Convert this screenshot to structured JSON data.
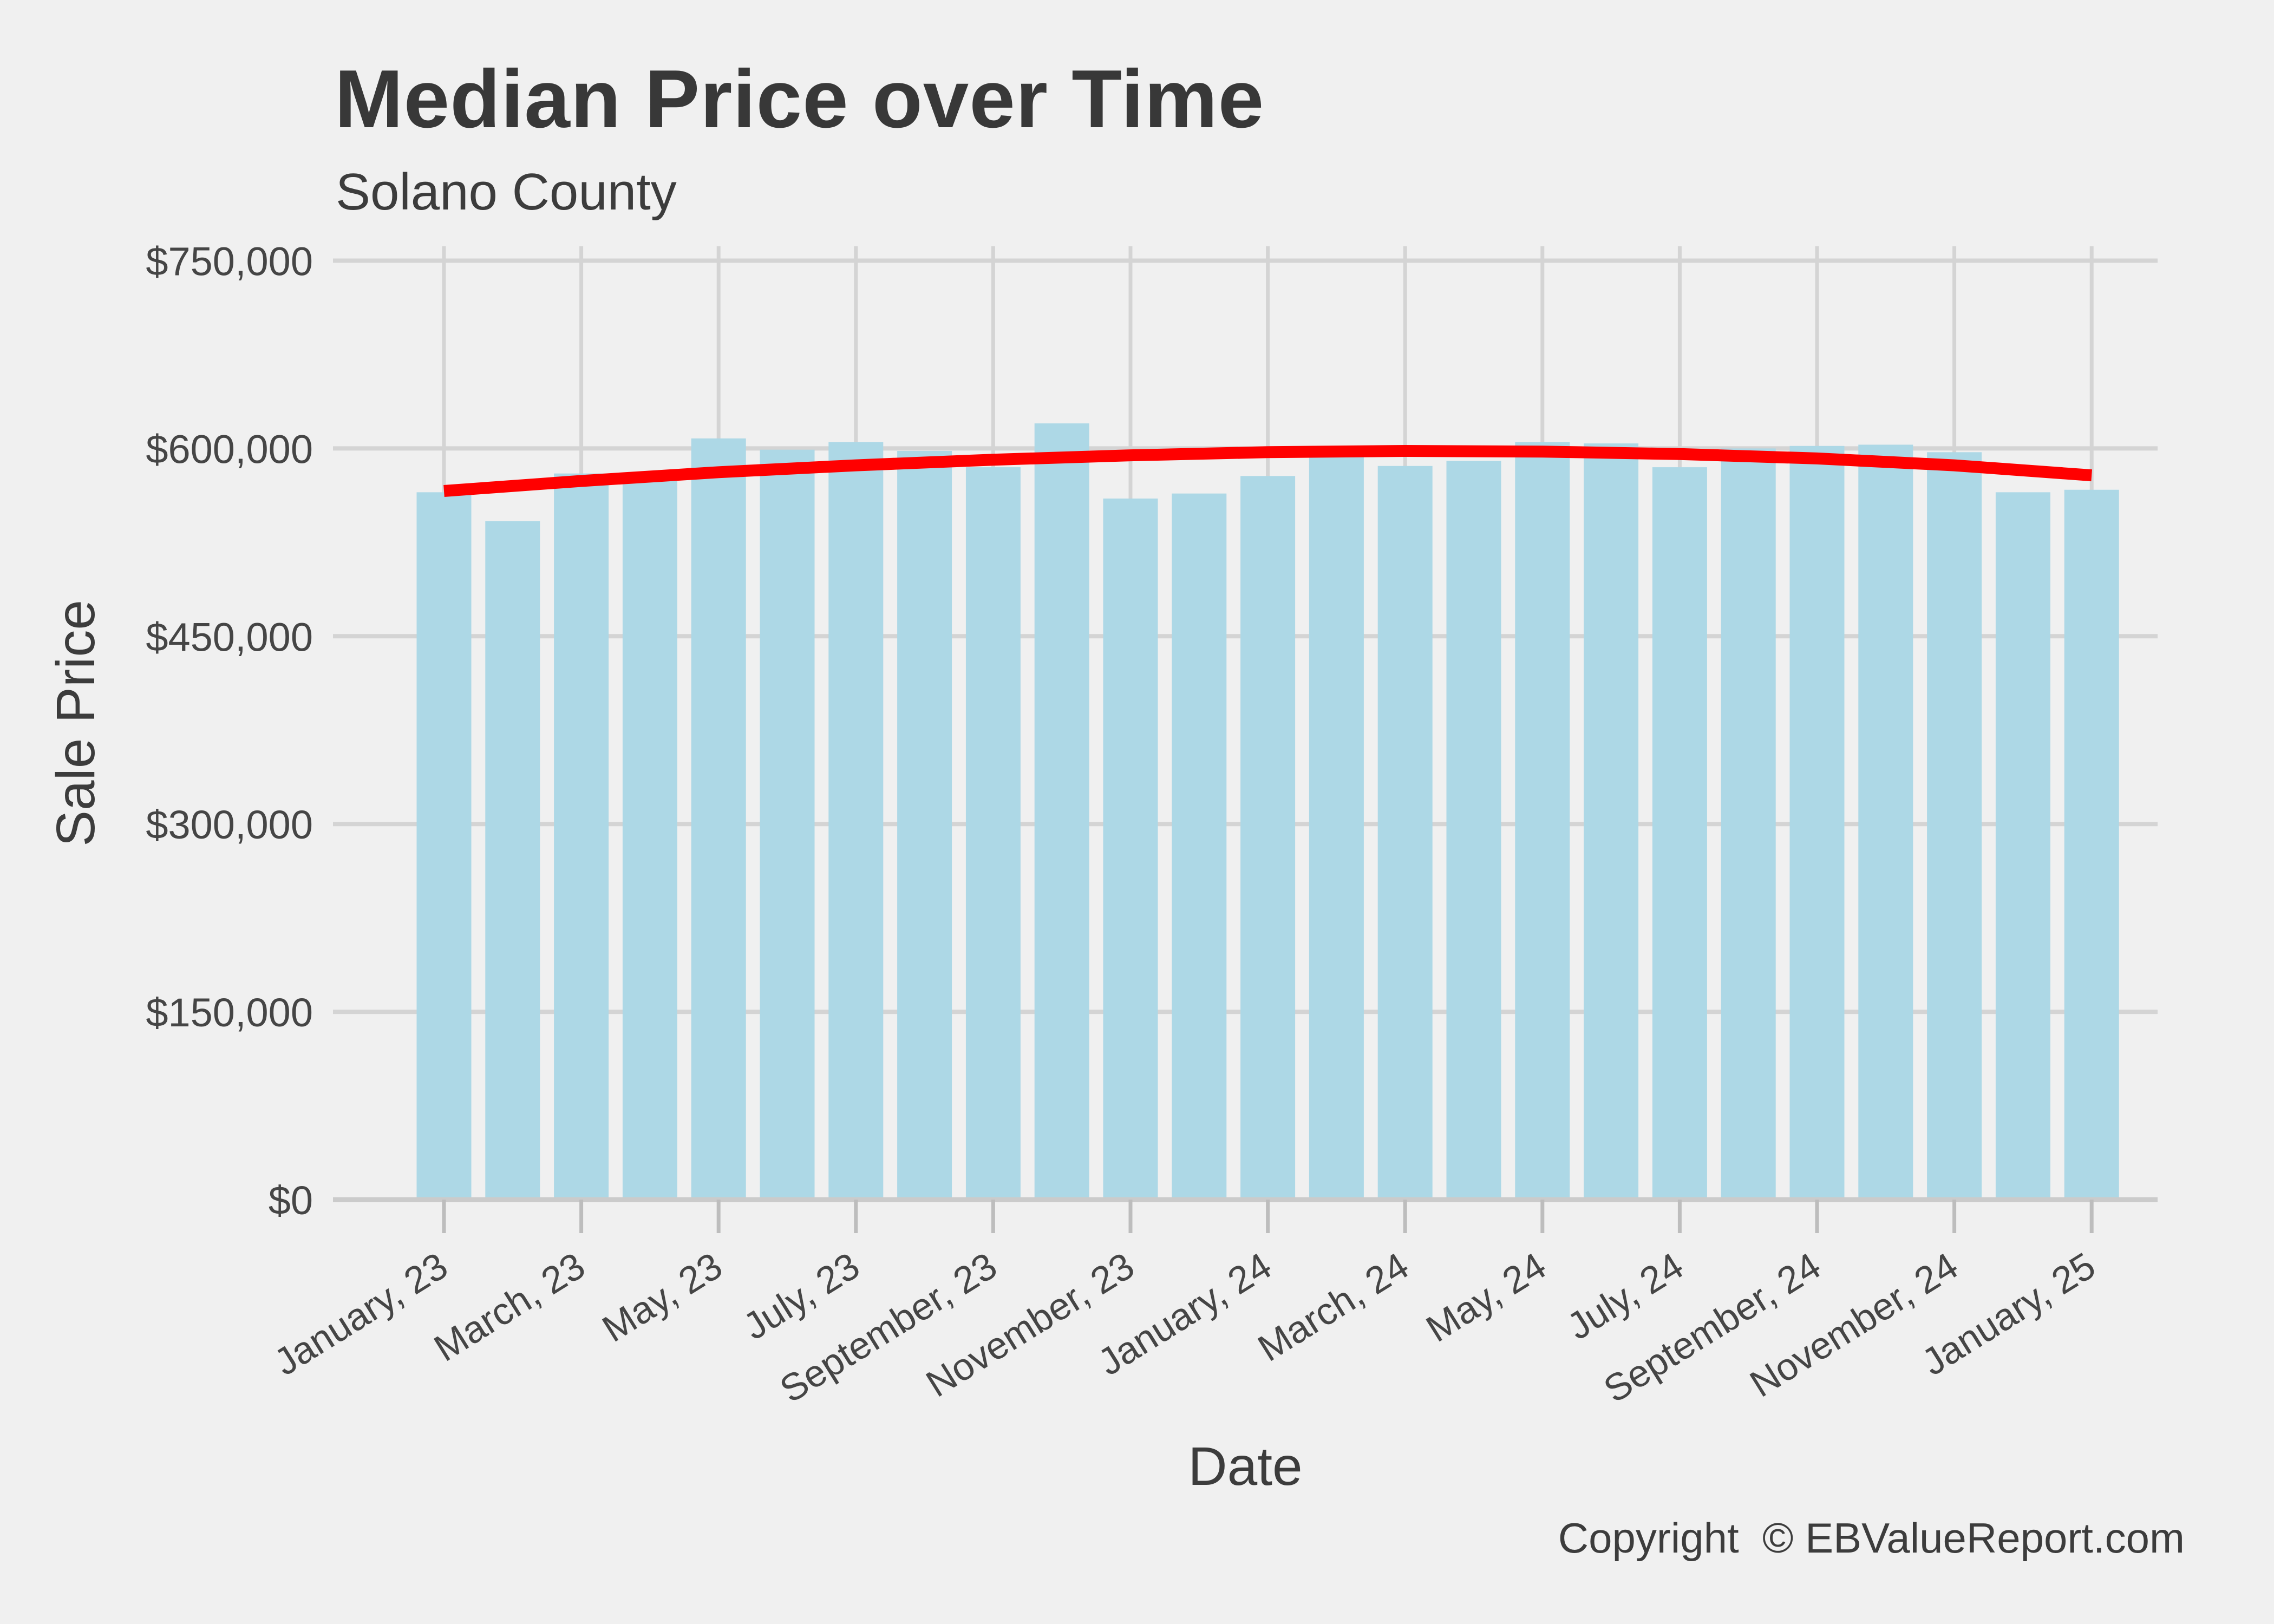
{
  "page": {
    "background": "#F0F0F0"
  },
  "header": {
    "title": "Median Price over Time",
    "subtitle": "Solano County"
  },
  "axes": {
    "x_title": "Date",
    "y_title": "Sale Price",
    "y_tick_labels": [
      "$0",
      "$150,000",
      "$300,000",
      "$450,000",
      "$600,000",
      "$750,000"
    ],
    "x_tick_labels": [
      "January, 23",
      "March, 23",
      "May, 23",
      "July, 23",
      "September, 23",
      "November, 23",
      "January, 24",
      "March, 24",
      "May, 24",
      "July, 24",
      "September, 24",
      "November, 24",
      "January, 25"
    ]
  },
  "footer": {
    "copyright": "Copyright  © EBValueReport.com"
  },
  "chart_data": {
    "type": "bar",
    "title": "Median Price over Time",
    "subtitle": "Solano County",
    "xlabel": "Date",
    "ylabel": "Sale Price",
    "categories": [
      "January, 23",
      "February, 23",
      "March, 23",
      "April, 23",
      "May, 23",
      "June, 23",
      "July, 23",
      "August, 23",
      "September, 23",
      "October, 23",
      "November, 23",
      "December, 23",
      "January, 24",
      "February, 24",
      "March, 24",
      "April, 24",
      "May, 24",
      "June, 24",
      "July, 24",
      "August, 24",
      "September, 24",
      "October, 24",
      "November, 24",
      "December, 24",
      "January, 25"
    ],
    "values": [
      565000,
      542000,
      580000,
      574000,
      608000,
      599000,
      605000,
      598000,
      585000,
      620000,
      560000,
      564000,
      578000,
      602000,
      586000,
      590000,
      605000,
      604000,
      585000,
      600000,
      602000,
      603000,
      597000,
      565000,
      567000
    ],
    "trend_line": {
      "name": "smoothed-median-trend",
      "color": "#FF0000",
      "month_index": [
        0,
        2,
        4,
        6,
        8,
        10,
        12,
        14,
        16,
        18,
        20,
        22,
        24
      ],
      "values": [
        566000,
        574000,
        581000,
        586500,
        591000,
        594500,
        597000,
        598000,
        597500,
        595500,
        592000,
        586500,
        578500
      ]
    },
    "ylim": [
      0,
      750000
    ],
    "ytick_step": 150000,
    "grid": "major-only",
    "legend": "none",
    "bar_color": "#ADD8E6",
    "background_color": "#F0F0F0",
    "gridline_color": "#D4D4D4",
    "tick_color": "#BDBDBD",
    "text_color": "#3C3C3C"
  }
}
